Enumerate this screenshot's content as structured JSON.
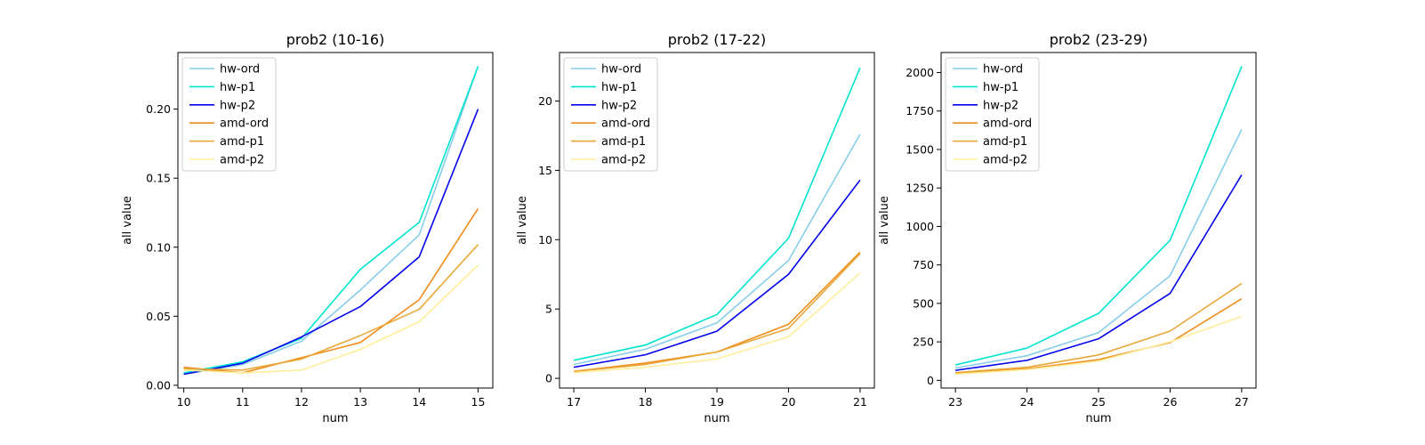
{
  "figure": {
    "background": "#ffffff"
  },
  "series_colors": {
    "hw-ord": "#87ceeb",
    "hw-p1": "#00e5d0",
    "hw-p2": "#0000ee",
    "amd-ord": "#f28c1a",
    "amd-p1": "#e8a838",
    "amd-p2": "#ffee99"
  },
  "chart_data": [
    {
      "type": "line",
      "title": "prob2 (10-16)",
      "xlabel": "num",
      "ylabel": "all value",
      "x": [
        10,
        11,
        12,
        13,
        14,
        15
      ],
      "xlim": [
        9.9,
        15.25
      ],
      "ylim": [
        -0.002,
        0.241
      ],
      "xticks": [
        10,
        11,
        12,
        13,
        14,
        15
      ],
      "yticks": [
        0.0,
        0.05,
        0.1,
        0.15,
        0.2
      ],
      "ytick_labels": [
        "0.00",
        "0.05",
        "0.10",
        "0.15",
        "0.20"
      ],
      "grid": false,
      "legend": "top-left",
      "series": [
        {
          "name": "hw-ord",
          "values": [
            0.008,
            0.015,
            0.032,
            0.069,
            0.109,
            0.231
          ]
        },
        {
          "name": "hw-p1",
          "values": [
            0.009,
            0.017,
            0.034,
            0.084,
            0.118,
            0.231
          ]
        },
        {
          "name": "hw-p2",
          "values": [
            0.008,
            0.016,
            0.035,
            0.057,
            0.093,
            0.2
          ]
        },
        {
          "name": "amd-ord",
          "values": [
            0.013,
            0.009,
            0.02,
            0.031,
            0.062,
            0.128
          ]
        },
        {
          "name": "amd-p1",
          "values": [
            0.012,
            0.011,
            0.019,
            0.036,
            0.055,
            0.102
          ]
        },
        {
          "name": "amd-p2",
          "values": [
            0.011,
            0.009,
            0.011,
            0.026,
            0.046,
            0.087
          ]
        }
      ]
    },
    {
      "type": "line",
      "title": "prob2 (17-22)",
      "xlabel": "num",
      "ylabel": "all value",
      "x": [
        17,
        18,
        19,
        20,
        21
      ],
      "xlim": [
        16.8,
        21.2
      ],
      "ylim": [
        -0.7,
        23.5
      ],
      "xticks": [
        17,
        18,
        19,
        20,
        21
      ],
      "yticks": [
        0,
        5,
        10,
        15,
        20
      ],
      "ytick_labels": [
        "0",
        "5",
        "10",
        "15",
        "20"
      ],
      "grid": false,
      "legend": "top-left",
      "series": [
        {
          "name": "hw-ord",
          "values": [
            1.0,
            2.1,
            4.0,
            8.5,
            17.6
          ]
        },
        {
          "name": "hw-p1",
          "values": [
            1.3,
            2.4,
            4.6,
            10.1,
            22.4
          ]
        },
        {
          "name": "hw-p2",
          "values": [
            0.8,
            1.7,
            3.4,
            7.5,
            14.3
          ]
        },
        {
          "name": "amd-ord",
          "values": [
            0.5,
            1.1,
            1.9,
            3.9,
            9.1
          ]
        },
        {
          "name": "amd-p1",
          "values": [
            0.5,
            1.0,
            1.9,
            3.6,
            9.0
          ]
        },
        {
          "name": "amd-p2",
          "values": [
            0.4,
            0.8,
            1.4,
            3.0,
            7.6
          ]
        }
      ]
    },
    {
      "type": "line",
      "title": "prob2 (23-29)",
      "xlabel": "num",
      "ylabel": "all value",
      "x": [
        23,
        24,
        25,
        26,
        27
      ],
      "xlim": [
        22.8,
        27.2
      ],
      "ylim": [
        -50,
        2130
      ],
      "xticks": [
        23,
        24,
        25,
        26,
        27
      ],
      "yticks": [
        0,
        250,
        500,
        750,
        1000,
        1250,
        1500,
        1750,
        2000
      ],
      "ytick_labels": [
        "0",
        "250",
        "500",
        "750",
        "1000",
        "1250",
        "1500",
        "1750",
        "2000"
      ],
      "grid": false,
      "legend": "top-left",
      "series": [
        {
          "name": "hw-ord",
          "values": [
            80,
            160,
            310,
            680,
            1630
          ]
        },
        {
          "name": "hw-p1",
          "values": [
            100,
            210,
            435,
            910,
            2040
          ]
        },
        {
          "name": "hw-p2",
          "values": [
            65,
            130,
            270,
            565,
            1335
          ]
        },
        {
          "name": "amd-ord",
          "values": [
            45,
            75,
            135,
            245,
            530
          ]
        },
        {
          "name": "amd-p1",
          "values": [
            50,
            85,
            165,
            320,
            630
          ]
        },
        {
          "name": "amd-p2",
          "values": [
            40,
            70,
            125,
            250,
            415
          ]
        }
      ]
    }
  ]
}
